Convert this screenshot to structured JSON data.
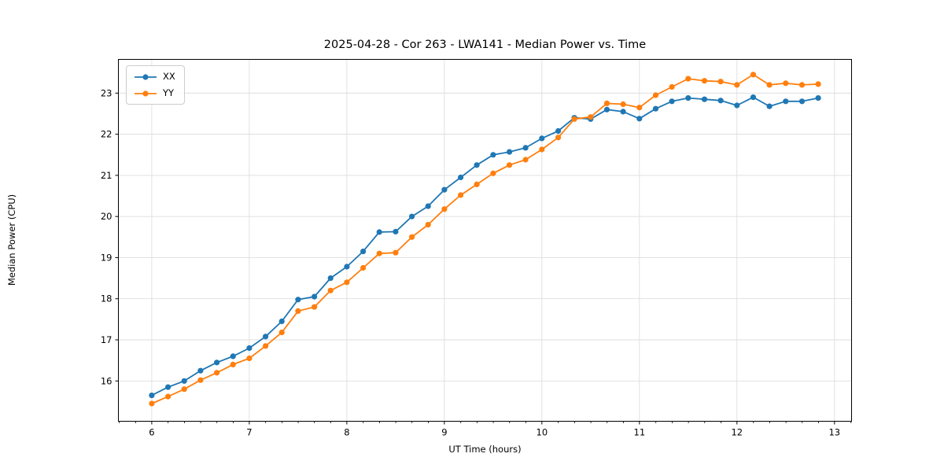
{
  "chart_data": {
    "type": "line",
    "title": "2025-04-28 - Cor 263 - LWA141 - Median Power vs. Time",
    "xlabel": "UT Time (hours)",
    "ylabel": "Median Power (CPU)",
    "xlim": [
      5.658,
      13.175
    ],
    "ylim": [
      15.02,
      23.82
    ],
    "xticks": [
      6,
      7,
      8,
      9,
      10,
      11,
      12,
      13
    ],
    "yticks": [
      16,
      17,
      18,
      19,
      20,
      21,
      22,
      23
    ],
    "minor_xtick_step": 0.1667,
    "grid": true,
    "grid_color": "#dedede",
    "legend_position": "upper-left",
    "x": [
      6.0,
      6.167,
      6.333,
      6.5,
      6.667,
      6.833,
      7.0,
      7.167,
      7.333,
      7.5,
      7.667,
      7.833,
      8.0,
      8.167,
      8.333,
      8.5,
      8.667,
      8.833,
      9.0,
      9.167,
      9.333,
      9.5,
      9.667,
      9.833,
      10.0,
      10.167,
      10.333,
      10.5,
      10.667,
      10.833,
      11.0,
      11.167,
      11.333,
      11.5,
      11.667,
      11.833,
      12.0,
      12.167,
      12.333,
      12.5,
      12.667,
      12.833
    ],
    "series": [
      {
        "name": "XX",
        "color": "#1f77b4",
        "values": [
          15.65,
          15.85,
          16.0,
          16.25,
          16.45,
          16.6,
          16.8,
          17.08,
          17.45,
          17.98,
          18.05,
          18.5,
          18.78,
          19.15,
          19.62,
          19.63,
          20.0,
          20.25,
          20.65,
          20.95,
          21.25,
          21.5,
          21.57,
          21.67,
          21.9,
          22.08,
          22.4,
          22.37,
          22.6,
          22.55,
          22.38,
          22.62,
          22.8,
          22.88,
          22.85,
          22.82,
          22.7,
          22.9,
          22.68,
          22.8,
          22.8,
          22.88
        ]
      },
      {
        "name": "YY",
        "color": "#ff7f0e",
        "values": [
          15.45,
          15.62,
          15.8,
          16.02,
          16.2,
          16.4,
          16.55,
          16.85,
          17.18,
          17.7,
          17.8,
          18.2,
          18.4,
          18.75,
          19.1,
          19.12,
          19.5,
          19.8,
          20.18,
          20.52,
          20.78,
          21.05,
          21.25,
          21.38,
          21.63,
          21.92,
          22.37,
          22.42,
          22.75,
          22.73,
          22.65,
          22.95,
          23.15,
          23.35,
          23.3,
          23.28,
          23.2,
          23.45,
          23.2,
          23.24,
          23.2,
          23.22
        ]
      }
    ]
  }
}
